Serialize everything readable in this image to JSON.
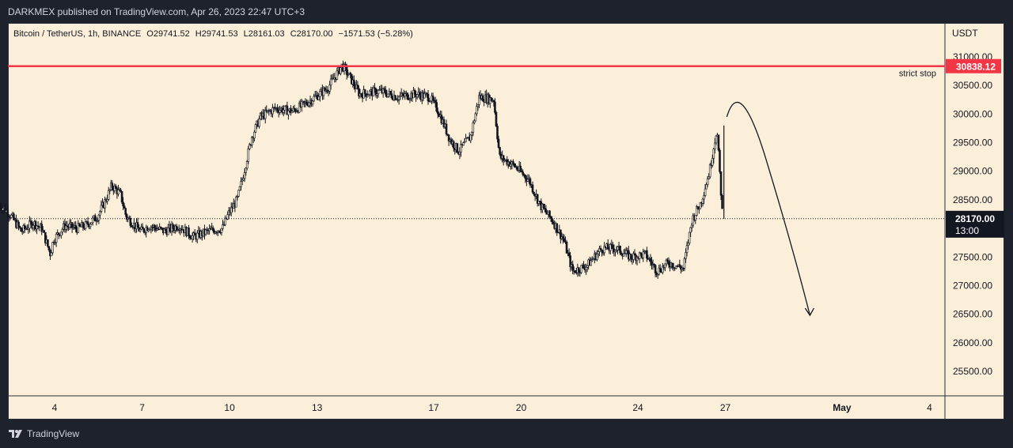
{
  "header": {
    "published": "DARKMEX published on TradingView.com, Apr 26, 2023 22:47 UTC+3"
  },
  "legend": {
    "symbol": "Bitcoin / TetherUS, 1h, BINANCE",
    "open": "O29741.52",
    "high": "H29741.53",
    "low": "L28161.03",
    "close": "C28170.00",
    "change": "−1571.53 (−5.28%)"
  },
  "axis": {
    "unit": "USDT"
  },
  "footer": {
    "brand": "TradingView"
  },
  "colors": {
    "background": "#fbefd9",
    "candle": "#131722",
    "stop_line": "#f23645",
    "current_price": "#131722",
    "page": "#1e222d"
  },
  "chart_data": {
    "type": "line",
    "title": "Bitcoin / TetherUS, 1h, BINANCE",
    "xlabel": "",
    "ylabel": "USDT",
    "ylim": [
      24800,
      31300
    ],
    "y_ticks": [
      25500,
      26000,
      26500,
      27000,
      27500,
      28000,
      28500,
      29000,
      29500,
      30000,
      30500,
      31000
    ],
    "y_tick_labels": [
      "25500.00",
      "26000.00",
      "26500.00",
      "27000.00",
      "27500.00",
      "28000.00",
      "28500.00",
      "29000.00",
      "29500.00",
      "30000.00",
      "30500.00",
      "31000.00"
    ],
    "x_ticks": [
      {
        "label": "4",
        "day": 4
      },
      {
        "label": "7",
        "day": 7
      },
      {
        "label": "10",
        "day": 10
      },
      {
        "label": "13",
        "day": 13
      },
      {
        "label": "17",
        "day": 17
      },
      {
        "label": "20",
        "day": 20
      },
      {
        "label": "24",
        "day": 24
      },
      {
        "label": "27",
        "day": 27
      },
      {
        "label": "May",
        "day": 31
      },
      {
        "label": "4",
        "day": 34
      }
    ],
    "series": [
      {
        "points": [
          {
            "day": 2.1,
            "value": 28450
          },
          {
            "day": 2.5,
            "value": 28250
          },
          {
            "day": 2.9,
            "value": 27950
          },
          {
            "day": 3.3,
            "value": 28100
          },
          {
            "day": 3.6,
            "value": 28000
          },
          {
            "day": 3.9,
            "value": 27550
          },
          {
            "day": 4.0,
            "value": 27800
          },
          {
            "day": 4.4,
            "value": 28050
          },
          {
            "day": 4.8,
            "value": 28000
          },
          {
            "day": 5.1,
            "value": 28050
          },
          {
            "day": 5.5,
            "value": 28200
          },
          {
            "day": 5.8,
            "value": 28500
          },
          {
            "day": 6.0,
            "value": 28750
          },
          {
            "day": 6.3,
            "value": 28600
          },
          {
            "day": 6.5,
            "value": 28200
          },
          {
            "day": 7.0,
            "value": 27950
          },
          {
            "day": 7.3,
            "value": 28050
          },
          {
            "day": 7.8,
            "value": 27950
          },
          {
            "day": 8.3,
            "value": 28050
          },
          {
            "day": 8.8,
            "value": 27850
          },
          {
            "day": 9.3,
            "value": 27950
          },
          {
            "day": 9.8,
            "value": 28000
          },
          {
            "day": 10.0,
            "value": 28250
          },
          {
            "day": 10.3,
            "value": 28500
          },
          {
            "day": 10.5,
            "value": 28900
          },
          {
            "day": 10.8,
            "value": 29600
          },
          {
            "day": 11.1,
            "value": 29950
          },
          {
            "day": 11.6,
            "value": 30100
          },
          {
            "day": 12.2,
            "value": 30050
          },
          {
            "day": 12.7,
            "value": 30200
          },
          {
            "day": 13.4,
            "value": 30450
          },
          {
            "day": 13.9,
            "value": 30850
          },
          {
            "day": 14.1,
            "value": 30700
          },
          {
            "day": 14.5,
            "value": 30350
          },
          {
            "day": 15.2,
            "value": 30400
          },
          {
            "day": 15.8,
            "value": 30300
          },
          {
            "day": 16.4,
            "value": 30350
          },
          {
            "day": 16.9,
            "value": 30300
          },
          {
            "day": 17.2,
            "value": 30050
          },
          {
            "day": 17.6,
            "value": 29550
          },
          {
            "day": 17.9,
            "value": 29350
          },
          {
            "day": 18.3,
            "value": 29600
          },
          {
            "day": 18.6,
            "value": 30300
          },
          {
            "day": 19.1,
            "value": 30250
          },
          {
            "day": 19.3,
            "value": 29250
          },
          {
            "day": 19.8,
            "value": 29100
          },
          {
            "day": 20.3,
            "value": 28850
          },
          {
            "day": 20.7,
            "value": 28400
          },
          {
            "day": 21.1,
            "value": 28150
          },
          {
            "day": 21.5,
            "value": 27800
          },
          {
            "day": 21.8,
            "value": 27250
          },
          {
            "day": 22.3,
            "value": 27350
          },
          {
            "day": 22.8,
            "value": 27650
          },
          {
            "day": 23.3,
            "value": 27650
          },
          {
            "day": 23.8,
            "value": 27500
          },
          {
            "day": 24.3,
            "value": 27550
          },
          {
            "day": 24.7,
            "value": 27250
          },
          {
            "day": 25.1,
            "value": 27400
          },
          {
            "day": 25.6,
            "value": 27300
          },
          {
            "day": 25.9,
            "value": 28150
          },
          {
            "day": 26.2,
            "value": 28450
          },
          {
            "day": 26.5,
            "value": 29000
          },
          {
            "day": 26.75,
            "value": 29750
          },
          {
            "day": 26.95,
            "value": 28170
          }
        ]
      }
    ],
    "horizontal_lines": [
      {
        "value": 30838.12,
        "label": "30838.12",
        "note": "strict stop"
      }
    ],
    "current_price": {
      "value": 28170.0,
      "label": "28170.00",
      "countdown": "13:00"
    },
    "projection_curve": [
      {
        "day": 27.05,
        "value": 29950
      },
      {
        "day": 27.5,
        "value": 30300
      },
      {
        "day": 28.4,
        "value": 29200
      },
      {
        "day": 29.2,
        "value": 27600
      },
      {
        "day": 29.9,
        "value": 26480
      }
    ]
  }
}
